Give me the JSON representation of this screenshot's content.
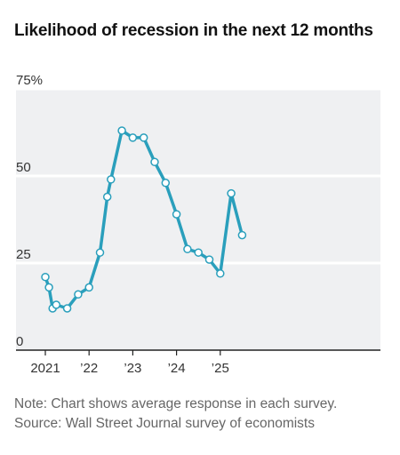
{
  "title": "Likelihood of recession in the next 12 months",
  "note": "Note: Chart shows average response in each survey.",
  "source": "Source: Wall Street Journal survey of economists",
  "colors": {
    "line": "#2a9fbc",
    "plot_background": "#eff0f2",
    "gridline": "#ffffff",
    "marker_fill": "#ffffff"
  },
  "chart_data": {
    "type": "line",
    "title": "Likelihood of recession in the next 12 months",
    "ylim": [
      0,
      75
    ],
    "y_ticks": [
      0,
      25,
      50,
      75
    ],
    "y_tick_labels": [
      "0",
      "25",
      "50",
      "75%"
    ],
    "xlim": [
      "2021-01",
      "2025-08"
    ],
    "x_ticks": [
      "2021-01",
      "2022-01",
      "2023-01",
      "2024-01",
      "2025-01"
    ],
    "x_tick_labels": [
      "2021",
      "’22",
      "’23",
      "’24",
      "’25"
    ],
    "grid": true,
    "markers": true,
    "series": [
      {
        "x": [
          "2021-01",
          "2021-02",
          "2021-03",
          "2021-04",
          "2021-07",
          "2021-10",
          "2022-01",
          "2022-04",
          "2022-06",
          "2022-07",
          "2022-10",
          "2023-01",
          "2023-04",
          "2023-07",
          "2023-10",
          "2024-01",
          "2024-04",
          "2024-07",
          "2024-10",
          "2025-01",
          "2025-04",
          "2025-07"
        ],
        "y": [
          21,
          18,
          12,
          13,
          12,
          16,
          18,
          28,
          44,
          49,
          63,
          61,
          61,
          54,
          48,
          39,
          29,
          28,
          26,
          22,
          45,
          33
        ]
      }
    ]
  }
}
